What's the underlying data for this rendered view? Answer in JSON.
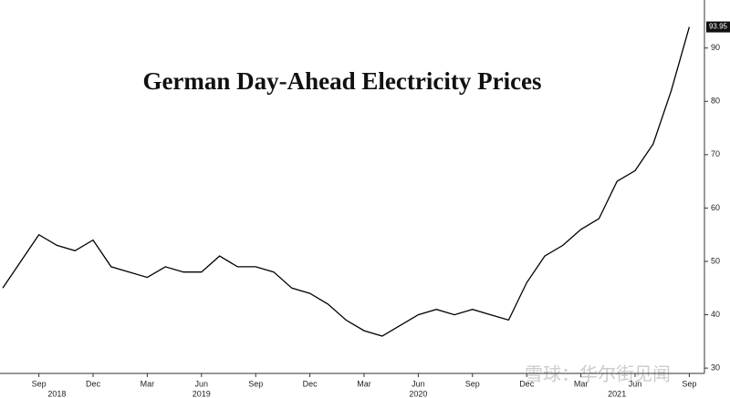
{
  "chart_data": {
    "type": "line",
    "title": "German Day-Ahead Electricity Prices",
    "watermark": "雪球：华尔街见闻",
    "x": [
      "2018-07",
      "2018-08",
      "2018-09",
      "2018-10",
      "2018-11",
      "2018-12",
      "2019-01",
      "2019-02",
      "2019-03",
      "2019-04",
      "2019-05",
      "2019-06",
      "2019-07",
      "2019-08",
      "2019-09",
      "2019-10",
      "2019-11",
      "2019-12",
      "2020-01",
      "2020-02",
      "2020-03",
      "2020-04",
      "2020-05",
      "2020-06",
      "2020-07",
      "2020-08",
      "2020-09",
      "2020-10",
      "2020-11",
      "2020-12",
      "2021-01",
      "2021-02",
      "2021-03",
      "2021-04",
      "2021-05",
      "2021-06",
      "2021-07",
      "2021-08",
      "2021-09"
    ],
    "series": [
      {
        "color": "#000000",
        "values": [
          45,
          50,
          55,
          53,
          52,
          54,
          49,
          48,
          47,
          49,
          48,
          48,
          51,
          49,
          49,
          48,
          45,
          44,
          42,
          39,
          37,
          36,
          38,
          40,
          41,
          40,
          41,
          40,
          39,
          46,
          51,
          53,
          56,
          58,
          65,
          67,
          72,
          82,
          93.95
        ]
      }
    ],
    "ylim": [
      29,
      99
    ],
    "yticks": [
      30,
      40,
      50,
      60,
      70,
      80,
      90
    ],
    "xticks": [
      {
        "value": "2018-09",
        "label": "Sep"
      },
      {
        "value": "2018-12",
        "label": "Dec"
      },
      {
        "value": "2019-03",
        "label": "Mar"
      },
      {
        "value": "2019-06",
        "label": "Jun"
      },
      {
        "value": "2019-09",
        "label": "Sep"
      },
      {
        "value": "2019-12",
        "label": "Dec"
      },
      {
        "value": "2020-03",
        "label": "Mar"
      },
      {
        "value": "2020-06",
        "label": "Jun"
      },
      {
        "value": "2020-09",
        "label": "Sep"
      },
      {
        "value": "2020-12",
        "label": "Dec"
      },
      {
        "value": "2021-03",
        "label": "Mar"
      },
      {
        "value": "2021-06",
        "label": "Jun"
      },
      {
        "value": "2021-09",
        "label": "Sep"
      }
    ],
    "year_labels": [
      {
        "value": "2018-10",
        "label": "2018"
      },
      {
        "value": "2019-06",
        "label": "2019"
      },
      {
        "value": "2020-06",
        "label": "2020"
      },
      {
        "value": "2021-05",
        "label": "2021"
      }
    ],
    "grid": false
  }
}
